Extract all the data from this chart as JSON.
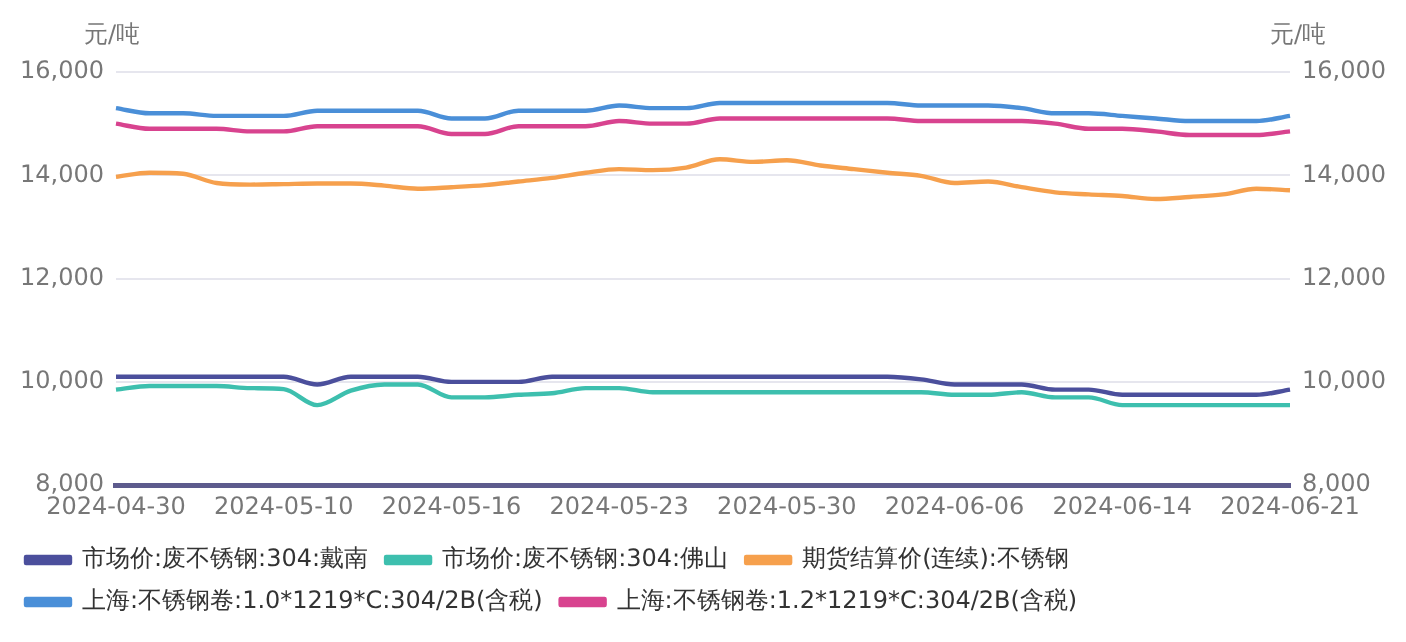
{
  "chart_data": {
    "type": "line",
    "ylabel": "元/吨",
    "y2label": "元/吨",
    "categories": [
      "2024-04-30",
      null,
      null,
      null,
      null,
      "2024-05-10",
      null,
      null,
      null,
      null,
      "2024-05-16",
      null,
      null,
      null,
      null,
      "2024-05-23",
      null,
      null,
      null,
      null,
      "2024-05-30",
      null,
      null,
      null,
      null,
      "2024-06-06",
      null,
      null,
      null,
      null,
      "2024-06-14",
      null,
      null,
      null,
      null,
      "2024-06-21"
    ],
    "series": [
      {
        "name": "市场价:废不锈钢:304:戴南",
        "color": "#4b4f9c",
        "values": [
          10100,
          10100,
          10100,
          10100,
          10100,
          10100,
          9950,
          10100,
          10100,
          10100,
          10000,
          10000,
          10000,
          10100,
          10100,
          10100,
          10100,
          10100,
          10100,
          10100,
          10100,
          10100,
          10100,
          10100,
          10050,
          9950,
          9950,
          9950,
          9850,
          9850,
          9750,
          9750,
          9750,
          9750,
          9750,
          9850
        ]
      },
      {
        "name": "市场价:废不锈钢:304:佛山",
        "color": "#3dbfae",
        "values": [
          9850,
          9920,
          9920,
          9920,
          9880,
          9860,
          9550,
          9830,
          9950,
          9950,
          9700,
          9700,
          9750,
          9780,
          9880,
          9880,
          9800,
          9800,
          9800,
          9800,
          9800,
          9800,
          9800,
          9800,
          9800,
          9750,
          9750,
          9800,
          9700,
          9700,
          9550,
          9550,
          9550,
          9550,
          9550,
          9550
        ]
      },
      {
        "name": "期货结算价(连续):不锈钢",
        "color": "#f6a04d",
        "values": [
          13970,
          14050,
          14030,
          13850,
          13820,
          13830,
          13840,
          13840,
          13800,
          13740,
          13770,
          13810,
          13880,
          13950,
          14050,
          14120,
          14100,
          14150,
          14310,
          14260,
          14290,
          14190,
          14120,
          14050,
          13990,
          13850,
          13880,
          13770,
          13670,
          13630,
          13600,
          13540,
          13580,
          13630,
          13740,
          13710
        ]
      },
      {
        "name": "上海:不锈钢卷:1.0*1219*C:304/2B(含税)",
        "color": "#4a8fd8",
        "values": [
          15300,
          15200,
          15200,
          15150,
          15150,
          15150,
          15250,
          15250,
          15250,
          15250,
          15100,
          15100,
          15250,
          15250,
          15250,
          15350,
          15300,
          15300,
          15400,
          15400,
          15400,
          15400,
          15400,
          15400,
          15350,
          15350,
          15350,
          15300,
          15200,
          15200,
          15150,
          15100,
          15050,
          15050,
          15050,
          15150
        ]
      },
      {
        "name": "上海:不锈钢卷:1.2*1219*C:304/2B(含税)",
        "color": "#d8438f",
        "values": [
          15000,
          14900,
          14900,
          14900,
          14850,
          14850,
          14950,
          14950,
          14950,
          14950,
          14800,
          14800,
          14950,
          14950,
          14950,
          15050,
          15000,
          15000,
          15100,
          15100,
          15100,
          15100,
          15100,
          15100,
          15050,
          15050,
          15050,
          15050,
          15000,
          14900,
          14900,
          14850,
          14780,
          14780,
          14780,
          14850
        ]
      }
    ],
    "ylim": [
      8000,
      16000
    ],
    "yticks": [
      {
        "value": 8000,
        "label": "8,000"
      },
      {
        "value": 10000,
        "label": "10,000"
      },
      {
        "value": 12000,
        "label": "12,000"
      },
      {
        "value": 14000,
        "label": "14,000"
      },
      {
        "value": 16000,
        "label": "16,000"
      }
    ],
    "y2lim": [
      8000,
      16000
    ],
    "y2ticks": [
      {
        "value": 8000,
        "label": "8,000"
      },
      {
        "value": 10000,
        "label": "10,000"
      },
      {
        "value": 12000,
        "label": "12,000"
      },
      {
        "value": 14000,
        "label": "14,000"
      },
      {
        "value": 16000,
        "label": "16,000"
      }
    ],
    "grid": "y",
    "legend": "bottom",
    "marker": "none",
    "line_style": "solid"
  }
}
